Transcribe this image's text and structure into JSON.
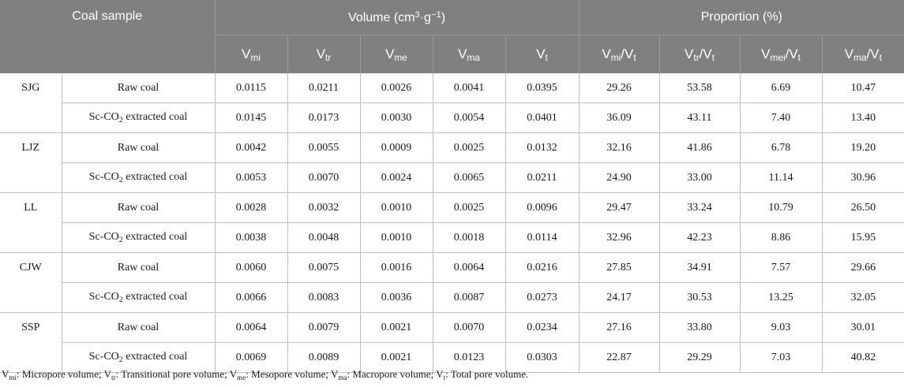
{
  "header": {
    "coal_sample": "Coal sample",
    "volume_group": "Volume (cm³·g⁻¹)",
    "proportion_group": "Proportion (%)",
    "vol_cols": [
      "V_mi",
      "V_tr",
      "V_me",
      "V_ma",
      "V_t"
    ],
    "prop_cols": [
      "V_mi/V_t",
      "V_tr/V_t",
      "V_mei/V_t",
      "V_ma/V_t"
    ]
  },
  "rows": [
    {
      "sample": "SJG",
      "condition": "Raw coal",
      "volume": [
        "0.0115",
        "0.0211",
        "0.0026",
        "0.0041",
        "0.0395"
      ],
      "proportion": [
        "29.26",
        "53.58",
        "6.69",
        "10.47"
      ]
    },
    {
      "sample": "SJG",
      "condition": "Sc-CO2 extracted coal",
      "volume": [
        "0.0145",
        "0.0173",
        "0.0030",
        "0.0054",
        "0.0401"
      ],
      "proportion": [
        "36.09",
        "43.11",
        "7.40",
        "13.40"
      ]
    },
    {
      "sample": "LJZ",
      "condition": "Raw coal",
      "volume": [
        "0.0042",
        "0.0055",
        "0.0009",
        "0.0025",
        "0.0132"
      ],
      "proportion": [
        "32.16",
        "41.86",
        "6.78",
        "19.20"
      ]
    },
    {
      "sample": "LJZ",
      "condition": "Sc-CO2 extracted coal",
      "volume": [
        "0.0053",
        "0.0070",
        "0.0024",
        "0.0065",
        "0.0211"
      ],
      "proportion": [
        "24.90",
        "33.00",
        "11.14",
        "30.96"
      ]
    },
    {
      "sample": "LL",
      "condition": "Raw coal",
      "volume": [
        "0.0028",
        "0.0032",
        "0.0010",
        "0.0025",
        "0.0096"
      ],
      "proportion": [
        "29.47",
        "33.24",
        "10.79",
        "26.50"
      ]
    },
    {
      "sample": "LL",
      "condition": "Sc-CO2 extracted coal",
      "volume": [
        "0.0038",
        "0.0048",
        "0.0010",
        "0.0018",
        "0.0114"
      ],
      "proportion": [
        "32.96",
        "42.23",
        "8.86",
        "15.95"
      ]
    },
    {
      "sample": "CJW",
      "condition": "Raw coal",
      "volume": [
        "0.0060",
        "0.0075",
        "0.0016",
        "0.0064",
        "0.0216"
      ],
      "proportion": [
        "27.85",
        "34.91",
        "7.57",
        "29.66"
      ]
    },
    {
      "sample": "CJW",
      "condition": "Sc-CO2 extracted coal",
      "volume": [
        "0.0066",
        "0.0083",
        "0.0036",
        "0.0087",
        "0.0273"
      ],
      "proportion": [
        "24.17",
        "30.53",
        "13.25",
        "32.05"
      ]
    },
    {
      "sample": "SSP",
      "condition": "Raw coal",
      "volume": [
        "0.0064",
        "0.0079",
        "0.0021",
        "0.0070",
        "0.0234"
      ],
      "proportion": [
        "27.16",
        "33.80",
        "9.03",
        "30.01"
      ]
    },
    {
      "sample": "SSP",
      "condition": "Sc-CO2 extracted coal",
      "volume": [
        "0.0069",
        "0.0089",
        "0.0021",
        "0.0123",
        "0.0303"
      ],
      "proportion": [
        "22.87",
        "29.29",
        "7.03",
        "40.82"
      ]
    }
  ],
  "footnote": "Vmi: Micropore volume; Vtr: Transitional pore volume; Vme: Mesopore volume; Vma: Macropore volume; Vt: Total pore volume."
}
